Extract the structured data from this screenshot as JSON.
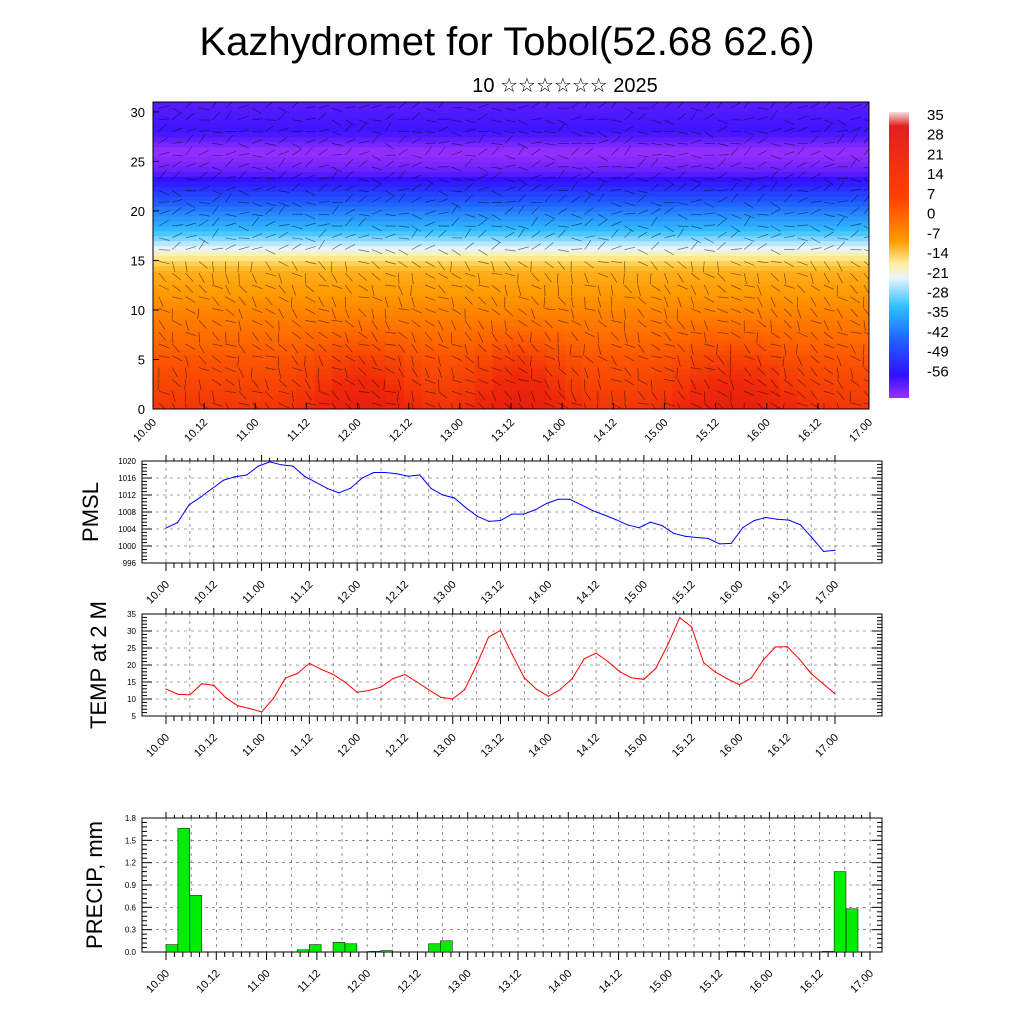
{
  "header": {
    "title": "Kazhydromet for Tobol(52.68 62.6)",
    "subtitle": "10 ☆☆☆☆☆☆ 2025"
  },
  "colors": {
    "pmsl_line": "#0000ff",
    "temp_line": "#ff0000",
    "precip_bar": "#00ee00",
    "frame": "#000000",
    "grid": "#000000"
  },
  "chart_data": [
    {
      "id": "upper-air",
      "type": "heatmap",
      "title": "",
      "xlabel": "",
      "ylabel": "",
      "x_ticks": [
        "10.00",
        "10.12",
        "11.00",
        "11.12",
        "12.00",
        "12.12",
        "13.00",
        "13.12",
        "14.00",
        "14.12",
        "15.00",
        "15.12",
        "16.00",
        "16.12",
        "17.00"
      ],
      "y_ticks": [
        0,
        5,
        10,
        15,
        20,
        25,
        30
      ],
      "ylim": [
        0,
        31
      ],
      "colorbar": {
        "labels": [
          "35",
          "28",
          "21",
          "14",
          "7",
          "0",
          "-7",
          "-14",
          "-21",
          "-28",
          "-35",
          "-42",
          "-49",
          "-56"
        ],
        "range": [
          -60,
          38
        ]
      },
      "temperature_profile": {
        "heights": [
          0,
          5,
          10,
          14,
          15,
          16,
          18,
          20,
          22,
          24,
          26,
          28,
          31
        ],
        "values": [
          18,
          14,
          7,
          0,
          -8,
          -16,
          -28,
          -36,
          -46,
          -56,
          -60,
          -53,
          -55
        ]
      },
      "note_wind_barbs": true
    },
    {
      "id": "pmsl",
      "type": "line",
      "ylabel": "PMSL",
      "x_ticks": [
        "10.00",
        "10.12",
        "11.00",
        "11.12",
        "12.00",
        "12.12",
        "13.00",
        "13.12",
        "14.00",
        "14.12",
        "15.00",
        "15.12",
        "16.00",
        "16.12",
        "17.00"
      ],
      "y_ticks": [
        996,
        1000,
        1004,
        1008,
        1012,
        1016,
        1020
      ],
      "ylim": [
        996,
        1020
      ],
      "series": [
        {
          "color": "#0000ff",
          "values": [
            1004.2,
            1005.5,
            1009.7,
            1011.5,
            1013.5,
            1015.5,
            1016.3,
            1016.7,
            1018.8,
            1019.8,
            1019.1,
            1018.8,
            1016.4,
            1015.0,
            1013.5,
            1012.5,
            1013.6,
            1016.0,
            1017.3,
            1017.3,
            1017.0,
            1016.4,
            1016.7,
            1013.5,
            1012.0,
            1011.3,
            1009.0,
            1007.0,
            1005.8,
            1006.0,
            1007.5,
            1007.5,
            1008.5,
            1010.0,
            1011.0,
            1011.0,
            1009.7,
            1008.3,
            1007.3,
            1006.2,
            1005.0,
            1004.3,
            1005.6,
            1004.8,
            1003.0,
            1002.3,
            1002.0,
            1001.8,
            1000.5,
            1000.6,
            1004.3,
            1006.0,
            1006.7,
            1006.3,
            1006.1,
            1005.0,
            1002.0,
            998.7,
            999.0
          ]
        }
      ]
    },
    {
      "id": "temp2m",
      "type": "line",
      "ylabel": "TEMP at 2 M",
      "x_ticks": [
        "10.00",
        "10.12",
        "11.00",
        "11.12",
        "12.00",
        "12.12",
        "13.00",
        "13.12",
        "14.00",
        "14.12",
        "15.00",
        "15.12",
        "16.00",
        "16.12",
        "17.00"
      ],
      "y_ticks": [
        5,
        10,
        15,
        20,
        25,
        30,
        35
      ],
      "ylim": [
        5,
        35
      ],
      "series": [
        {
          "color": "#ff0000",
          "values": [
            12.9,
            11.4,
            11.2,
            14.5,
            14.0,
            10.4,
            8.0,
            7.2,
            6.2,
            10.2,
            16.2,
            17.5,
            20.5,
            18.7,
            17.2,
            14.9,
            12.0,
            12.5,
            13.5,
            16.0,
            17.2,
            15.0,
            12.7,
            10.5,
            10.0,
            12.8,
            20.0,
            28.2,
            30.2,
            23.0,
            16.2,
            12.9,
            10.8,
            12.8,
            16.0,
            21.8,
            23.5,
            21.0,
            18.0,
            16.2,
            15.8,
            19.0,
            26.0,
            33.9,
            31.2,
            20.7,
            17.9,
            15.9,
            14.2,
            16.2,
            21.5,
            25.3,
            25.4,
            21.8,
            17.5,
            14.5,
            11.5
          ]
        }
      ]
    },
    {
      "id": "precip",
      "type": "bar",
      "ylabel": "PRECIP, mm",
      "x_ticks": [
        "10.00",
        "10.12",
        "11.00",
        "11.12",
        "12.00",
        "12.12",
        "13.00",
        "13.12",
        "14.00",
        "14.12",
        "15.00",
        "15.12",
        "16.00",
        "16.12",
        "17.00"
      ],
      "y_ticks": [
        "0.0",
        "0.3",
        "0.6",
        "0.9",
        "1.2",
        "1.5",
        "1.8"
      ],
      "ylim": [
        0,
        1.8
      ],
      "series": [
        {
          "color": "#00ee00",
          "values": [
            0.1,
            1.66,
            0.76,
            0,
            0,
            0,
            0,
            0,
            0,
            0,
            0,
            0.03,
            0.1,
            0,
            0.13,
            0.11,
            0,
            0.01,
            0.02,
            0,
            0,
            0,
            0.11,
            0.15,
            0,
            0,
            0,
            0,
            0,
            0,
            0,
            0,
            0,
            0,
            0,
            0,
            0,
            0,
            0,
            0,
            0,
            0,
            0,
            0,
            0,
            0,
            0,
            0.01,
            0.01,
            0,
            0,
            0,
            0,
            0,
            0,
            0.01,
            1.08,
            0.58
          ]
        }
      ]
    }
  ]
}
